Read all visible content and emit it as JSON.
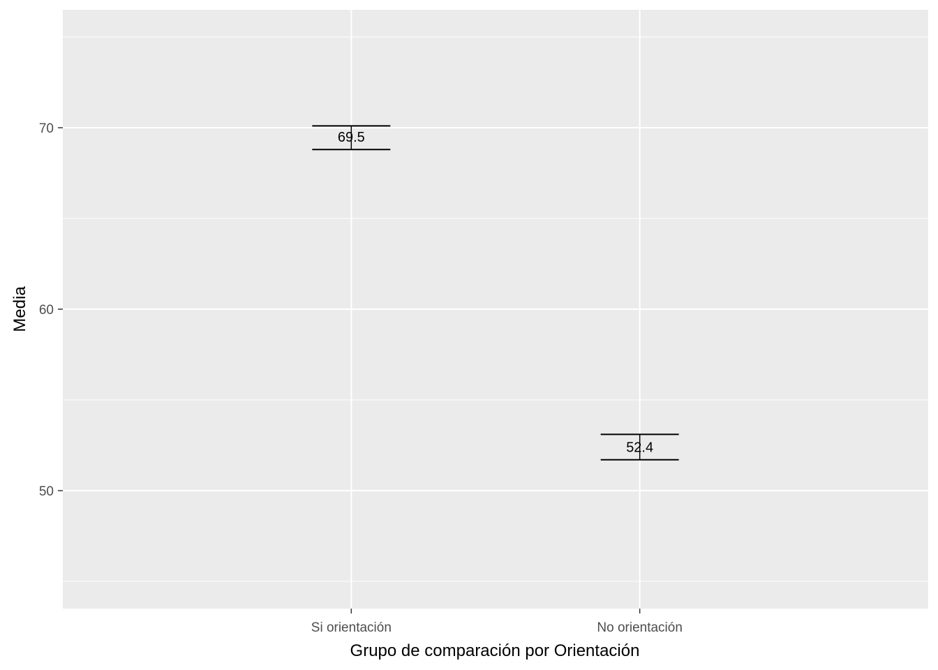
{
  "chart_data": {
    "type": "errorbar",
    "categories": [
      "Si orientación",
      "No orientación"
    ],
    "series": [
      {
        "values": [
          69.5,
          52.4
        ],
        "lower": [
          68.8,
          51.7
        ],
        "upper": [
          70.1,
          53.1
        ],
        "labels": [
          "69.5",
          "52.4"
        ]
      }
    ],
    "title": "",
    "xlabel": "Grupo de comparación por Orientación",
    "ylabel": "Media",
    "ylim": [
      43.5,
      76.5
    ],
    "yticks": [
      50,
      60,
      70
    ],
    "ytick_labels": [
      "50",
      "60",
      "70"
    ],
    "grid": true,
    "colors": {
      "panel": "#ebebeb",
      "grid": "#ffffff",
      "mark": "#000000",
      "tick_text": "#4d4d4d",
      "tick": "#333333"
    }
  }
}
